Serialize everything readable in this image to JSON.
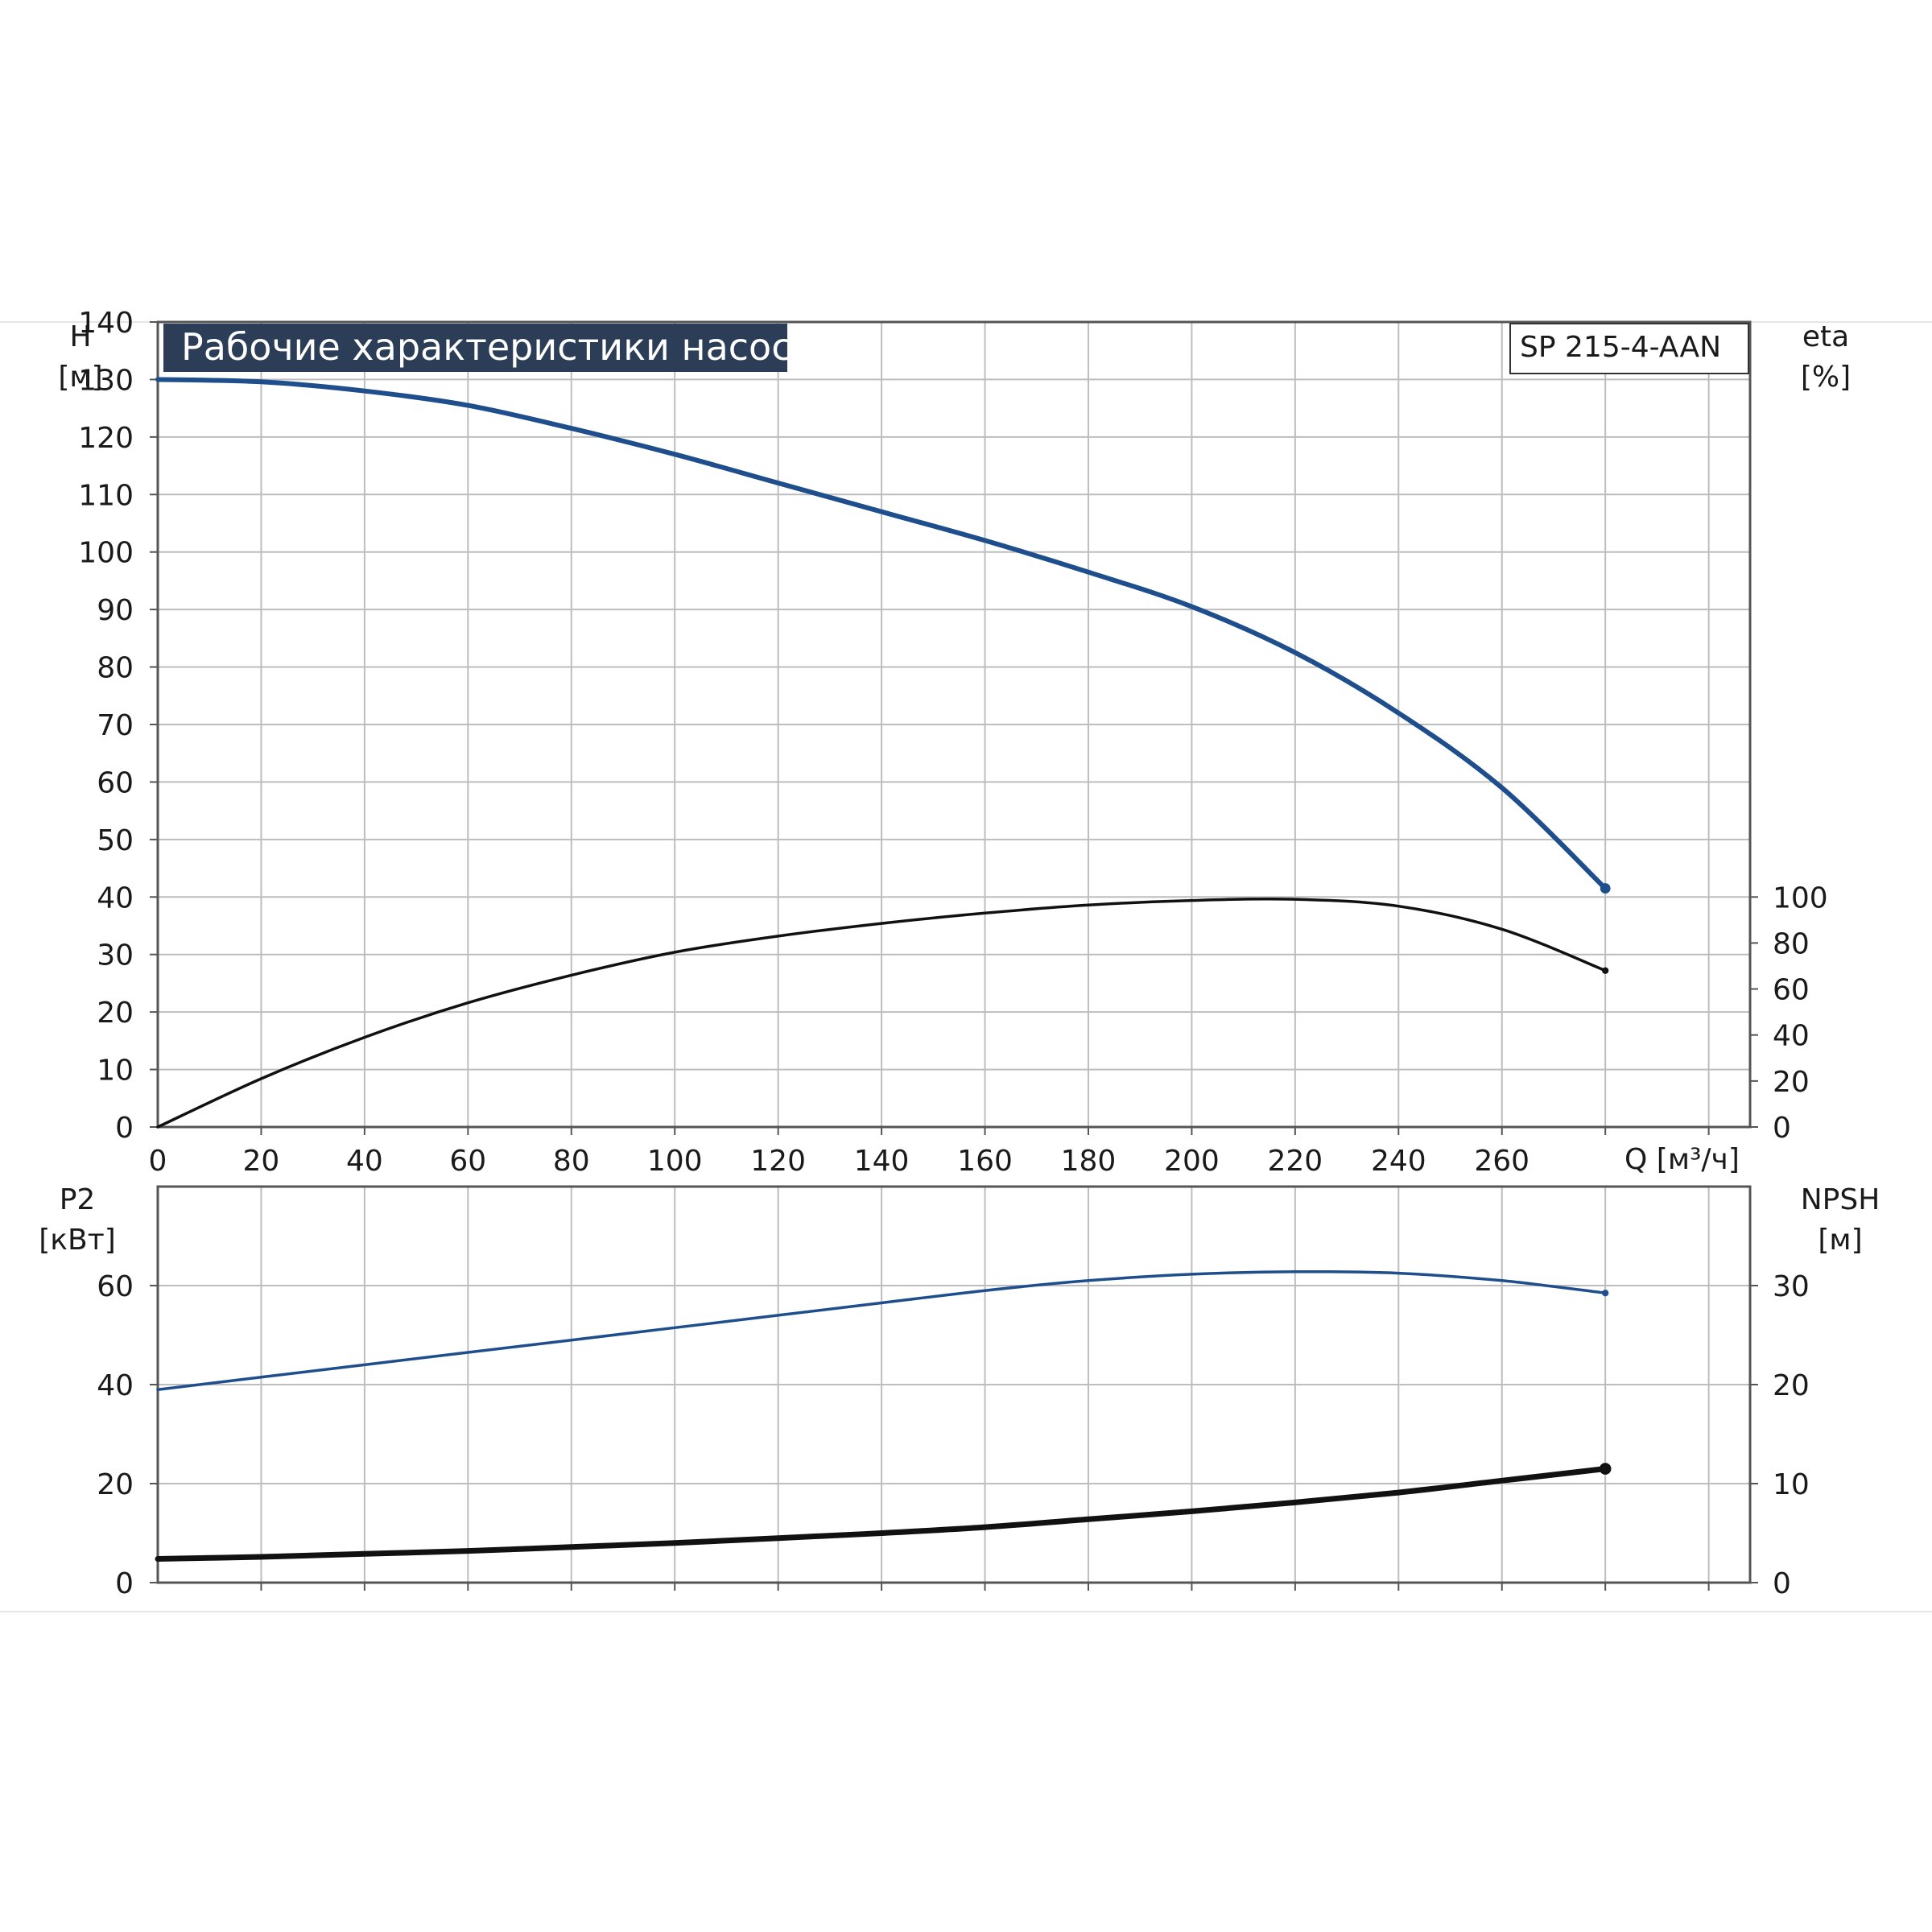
{
  "chart_data": [
    {
      "type": "line",
      "title": "Рабочие характеристики насоса",
      "model": "SP 215-4-AAN",
      "xlabel": "Q [м³/ч]",
      "xlim": [
        0,
        308
      ],
      "x_ticks": [
        0,
        20,
        40,
        60,
        80,
        100,
        120,
        140,
        160,
        180,
        200,
        220,
        240,
        260
      ],
      "left_axis": {
        "label_line1": "H",
        "label_line2": "[м]",
        "ylim": [
          0,
          140
        ],
        "ticks": [
          0,
          10,
          20,
          30,
          40,
          50,
          60,
          70,
          80,
          90,
          100,
          110,
          120,
          130,
          140
        ]
      },
      "right_axis": {
        "label_line1": "eta",
        "label_line2": "[%]",
        "ylim": [
          0,
          350
        ],
        "ticks": [
          0,
          20,
          40,
          60,
          80,
          100
        ]
      },
      "grid": true,
      "series": [
        {
          "axis": "left",
          "color": "#1f4e8c",
          "x": [
            0,
            20,
            40,
            60,
            80,
            100,
            120,
            140,
            160,
            180,
            200,
            220,
            240,
            260,
            280
          ],
          "y": [
            130,
            129.6,
            128,
            125.5,
            121.5,
            117,
            112,
            107,
            102,
            96.5,
            90.5,
            82.5,
            72,
            59,
            41.5
          ]
        },
        {
          "axis": "right",
          "color": "#111111",
          "x": [
            0,
            20,
            40,
            60,
            80,
            100,
            120,
            140,
            160,
            180,
            200,
            220,
            240,
            260,
            280
          ],
          "y": [
            0,
            21,
            39,
            54,
            66,
            76,
            83,
            88.5,
            93,
            96.5,
            98.5,
            99,
            96,
            86,
            68
          ]
        }
      ]
    },
    {
      "type": "line",
      "xlim": [
        0,
        308
      ],
      "x_ticks": [
        0,
        20,
        40,
        60,
        80,
        100,
        120,
        140,
        160,
        180,
        200,
        220,
        240,
        260,
        280,
        300
      ],
      "left_axis": {
        "label_line1": "P2",
        "label_line2": "[кВт]",
        "ylim": [
          0,
          80
        ],
        "ticks": [
          0,
          20,
          40,
          60
        ]
      },
      "right_axis": {
        "label_line1": "NPSH",
        "label_line2": "[м]",
        "ylim": [
          0,
          40
        ],
        "ticks": [
          0,
          10,
          20,
          30
        ]
      },
      "grid": true,
      "series": [
        {
          "axis": "left",
          "color": "#1f4e8c",
          "x": [
            0,
            20,
            40,
            60,
            80,
            100,
            120,
            140,
            160,
            180,
            200,
            220,
            240,
            260,
            280
          ],
          "y": [
            39,
            41.5,
            44,
            46.5,
            49,
            51.5,
            54,
            56.5,
            59,
            61,
            62.3,
            62.8,
            62.5,
            61,
            58.5
          ]
        },
        {
          "axis": "right",
          "color": "#111111",
          "x": [
            0,
            20,
            40,
            60,
            80,
            100,
            120,
            140,
            160,
            180,
            200,
            220,
            240,
            260,
            280
          ],
          "y": [
            2.4,
            2.6,
            2.9,
            3.2,
            3.6,
            4.0,
            4.5,
            5.0,
            5.6,
            6.4,
            7.2,
            8.1,
            9.1,
            10.3,
            11.5
          ]
        }
      ]
    }
  ]
}
